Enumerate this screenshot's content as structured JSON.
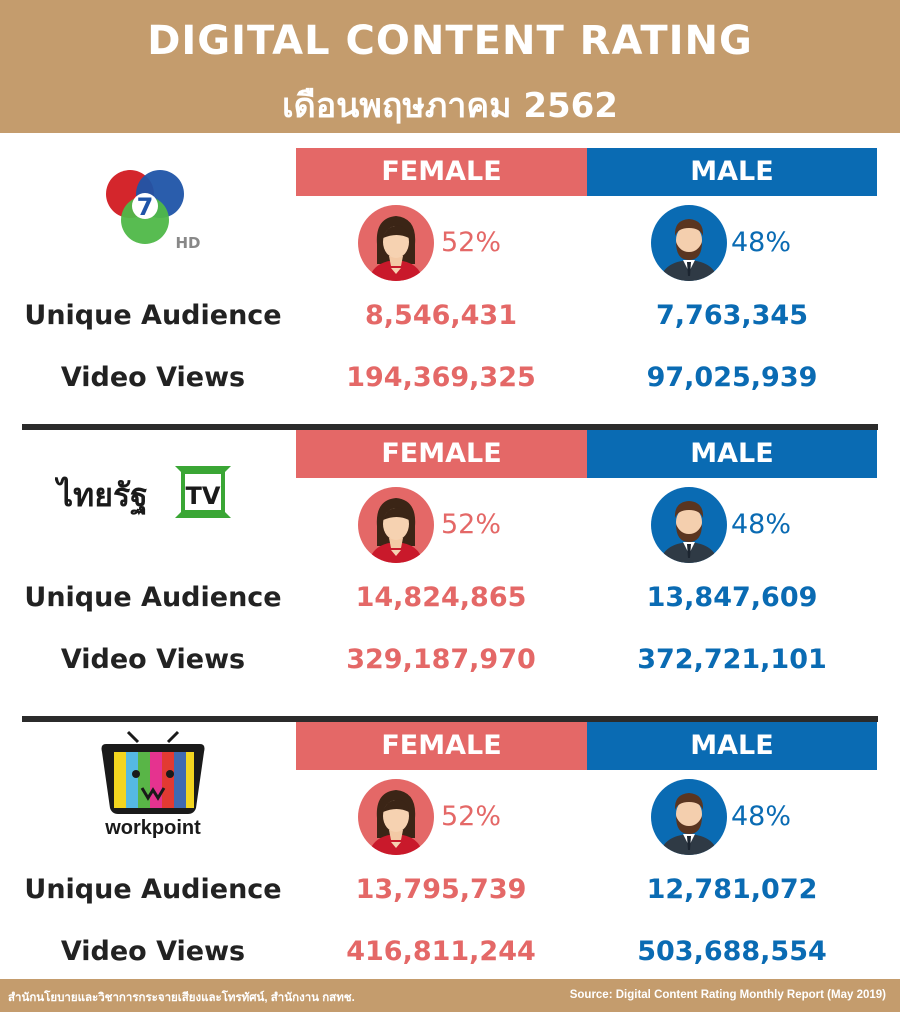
{
  "header": {
    "title": "DIGITAL CONTENT RATING",
    "subtitle": "เดือนพฤษภาคม 2562"
  },
  "colors": {
    "header_bg": "#c49c6d",
    "female": "#e46867",
    "male": "#0a6bb3",
    "divider": "#2b2b2b"
  },
  "labels": {
    "female": "FEMALE",
    "male": "MALE",
    "unique_audience": "Unique Audience",
    "video_views": "Video Views"
  },
  "sections": [
    {
      "logo": "ch7-hd-logo",
      "logo_text": "7",
      "logo_sub": "HD",
      "female_pct": "52%",
      "male_pct": "48%",
      "female_unique": "8,546,431",
      "male_unique": "7,763,345",
      "female_views": "194,369,325",
      "male_views": "97,025,939"
    },
    {
      "logo": "thairath-tv-logo",
      "logo_text": "ไทยรัฐ",
      "logo_sub": "TV",
      "female_pct": "52%",
      "male_pct": "48%",
      "female_unique": "14,824,865",
      "male_unique": "13,847,609",
      "female_views": "329,187,970",
      "male_views": "372,721,101"
    },
    {
      "logo": "workpoint-logo",
      "logo_text": "workpoint",
      "female_pct": "52%",
      "male_pct": "48%",
      "female_unique": "13,795,739",
      "male_unique": "12,781,072",
      "female_views": "416,811,244",
      "male_views": "503,688,554"
    }
  ],
  "footer": {
    "left": "สำนักนโยบายและวิชาการกระจายเสียงและโทรทัศน์, สำนักงาน กสทช.",
    "right": "Source: Digital Content Rating Monthly Report (May 2019)"
  }
}
